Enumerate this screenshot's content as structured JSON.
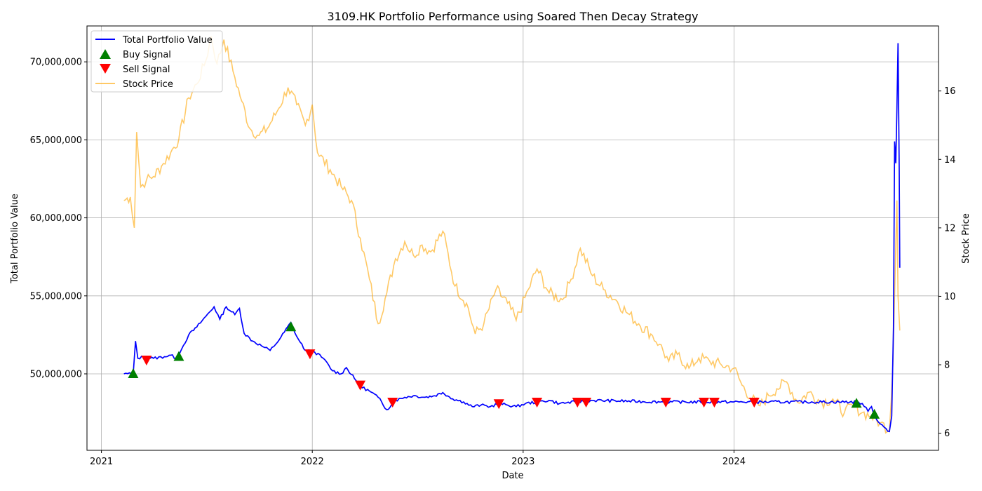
{
  "chart_data": {
    "type": "line",
    "title": "3109.HK Portfolio Performance using Soared Then Decay Strategy",
    "xlabel": "Date",
    "ylabel": "Total Portfolio Value",
    "y2label": "Stock Price",
    "x_ticks": [
      "2021",
      "2022",
      "2023",
      "2024"
    ],
    "xlim": [
      "2020-12-07",
      "2024-12-20"
    ],
    "ylim": [
      45100000,
      72300000
    ],
    "y_ticks": [
      50000000,
      55000000,
      60000000,
      65000000,
      70000000
    ],
    "y_tick_labels": [
      "50,000,000",
      "55,000,000",
      "60,000,000",
      "65,000,000",
      "70,000,000"
    ],
    "y2lim": [
      5.5,
      17.9
    ],
    "y2_ticks": [
      6,
      8,
      10,
      12,
      14,
      16
    ],
    "y2_tick_labels": [
      "6",
      "8",
      "10",
      "12",
      "14",
      "16"
    ],
    "grid": true,
    "legend_position": "top-left",
    "series": [
      {
        "name": "Total Portfolio Value",
        "axis": "left",
        "color": "#0000ff",
        "points": [
          [
            "2021-02-09",
            50000000
          ],
          [
            "2021-02-25",
            50000000
          ],
          [
            "2021-03-01",
            52100000
          ],
          [
            "2021-03-05",
            51000000
          ],
          [
            "2021-03-15",
            51100000
          ],
          [
            "2021-04-01",
            51000000
          ],
          [
            "2021-04-20",
            51100000
          ],
          [
            "2021-05-01",
            51200000
          ],
          [
            "2021-05-10",
            51000000
          ],
          [
            "2021-05-20",
            51600000
          ],
          [
            "2021-06-01",
            52500000
          ],
          [
            "2021-06-15",
            53000000
          ],
          [
            "2021-07-01",
            53700000
          ],
          [
            "2021-07-15",
            54300000
          ],
          [
            "2021-07-25",
            53500000
          ],
          [
            "2021-08-05",
            54300000
          ],
          [
            "2021-08-20",
            53800000
          ],
          [
            "2021-08-28",
            54200000
          ],
          [
            "2021-09-05",
            52600000
          ],
          [
            "2021-09-20",
            52100000
          ],
          [
            "2021-10-05",
            51800000
          ],
          [
            "2021-10-20",
            51500000
          ],
          [
            "2021-11-05",
            52200000
          ],
          [
            "2021-11-25",
            53300000
          ],
          [
            "2021-12-05",
            52400000
          ],
          [
            "2021-12-20",
            51500000
          ],
          [
            "2022-01-05",
            51400000
          ],
          [
            "2022-01-20",
            51000000
          ],
          [
            "2022-02-05",
            50200000
          ],
          [
            "2022-02-20",
            50000000
          ],
          [
            "2022-03-01",
            50400000
          ],
          [
            "2022-03-15",
            49700000
          ],
          [
            "2022-03-25",
            49200000
          ],
          [
            "2022-04-10",
            48900000
          ],
          [
            "2022-04-25",
            48500000
          ],
          [
            "2022-05-10",
            47700000
          ],
          [
            "2022-05-25",
            48300000
          ],
          [
            "2022-06-10",
            48500000
          ],
          [
            "2022-06-25",
            48600000
          ],
          [
            "2022-07-15",
            48500000
          ],
          [
            "2022-08-01",
            48600000
          ],
          [
            "2022-08-15",
            48800000
          ],
          [
            "2022-09-01",
            48400000
          ],
          [
            "2022-09-20",
            48200000
          ],
          [
            "2022-10-05",
            47900000
          ],
          [
            "2022-10-20",
            48000000
          ],
          [
            "2022-11-05",
            47900000
          ],
          [
            "2022-11-20",
            48100000
          ],
          [
            "2022-12-05",
            48000000
          ],
          [
            "2022-12-20",
            47900000
          ],
          [
            "2023-01-05",
            48100000
          ],
          [
            "2023-01-25",
            48200000
          ],
          [
            "2023-02-15",
            48300000
          ],
          [
            "2023-03-05",
            48100000
          ],
          [
            "2023-04-01",
            48200000
          ],
          [
            "2023-05-01",
            48300000
          ],
          [
            "2023-09-01",
            48200000
          ],
          [
            "2024-01-01",
            48200000
          ],
          [
            "2024-07-31",
            48200000
          ],
          [
            "2024-08-10",
            48100000
          ],
          [
            "2024-08-20",
            47600000
          ],
          [
            "2024-08-26",
            47900000
          ],
          [
            "2024-09-01",
            47300000
          ],
          [
            "2024-09-10",
            46800000
          ],
          [
            "2024-09-20",
            46500000
          ],
          [
            "2024-09-26",
            46300000
          ],
          [
            "2024-09-30",
            47300000
          ],
          [
            "2024-10-03",
            53000000
          ],
          [
            "2024-10-05",
            64900000
          ],
          [
            "2024-10-07",
            63500000
          ],
          [
            "2024-10-09",
            67000000
          ],
          [
            "2024-10-11",
            71200000
          ],
          [
            "2024-10-13",
            63000000
          ],
          [
            "2024-10-14",
            56800000
          ]
        ]
      },
      {
        "name": "Stock Price",
        "axis": "right",
        "color": "#ffa500",
        "points": [
          [
            "2021-02-09",
            12.8
          ],
          [
            "2021-02-20",
            12.9
          ],
          [
            "2021-02-27",
            12.0
          ],
          [
            "2021-03-03",
            14.8
          ],
          [
            "2021-03-10",
            13.2
          ],
          [
            "2021-03-20",
            13.4
          ],
          [
            "2021-04-01",
            13.5
          ],
          [
            "2021-04-15",
            13.8
          ],
          [
            "2021-05-01",
            14.2
          ],
          [
            "2021-05-15",
            14.6
          ],
          [
            "2021-06-01",
            15.8
          ],
          [
            "2021-06-15",
            16.2
          ],
          [
            "2021-07-01",
            16.9
          ],
          [
            "2021-07-10",
            17.6
          ],
          [
            "2021-07-20",
            16.8
          ],
          [
            "2021-08-01",
            17.5
          ],
          [
            "2021-08-20",
            16.4
          ],
          [
            "2021-09-01",
            15.7
          ],
          [
            "2021-09-15",
            14.9
          ],
          [
            "2021-10-01",
            14.7
          ],
          [
            "2021-10-15",
            14.9
          ],
          [
            "2021-11-01",
            15.4
          ],
          [
            "2021-11-20",
            16.1
          ],
          [
            "2021-12-05",
            15.6
          ],
          [
            "2021-12-20",
            15.0
          ],
          [
            "2022-01-01",
            15.6
          ],
          [
            "2022-01-10",
            14.2
          ],
          [
            "2022-02-01",
            13.7
          ],
          [
            "2022-02-20",
            13.2
          ],
          [
            "2022-03-10",
            12.8
          ],
          [
            "2022-03-25",
            11.7
          ],
          [
            "2022-04-10",
            10.5
          ],
          [
            "2022-04-25",
            9.2
          ],
          [
            "2022-05-10",
            10.1
          ],
          [
            "2022-05-25",
            11.1
          ],
          [
            "2022-06-10",
            11.6
          ],
          [
            "2022-06-25",
            11.2
          ],
          [
            "2022-07-10",
            11.5
          ],
          [
            "2022-07-25",
            11.3
          ],
          [
            "2022-08-15",
            11.9
          ],
          [
            "2022-09-05",
            10.3
          ],
          [
            "2022-09-25",
            9.8
          ],
          [
            "2022-10-10",
            8.9
          ],
          [
            "2022-10-25",
            9.2
          ],
          [
            "2022-11-15",
            10.2
          ],
          [
            "2022-12-05",
            9.8
          ],
          [
            "2022-12-20",
            9.3
          ],
          [
            "2023-01-10",
            10.2
          ],
          [
            "2023-01-25",
            10.8
          ],
          [
            "2023-02-15",
            10.1
          ],
          [
            "2023-03-10",
            9.9
          ],
          [
            "2023-03-25",
            10.5
          ],
          [
            "2023-04-10",
            11.4
          ],
          [
            "2023-05-01",
            10.6
          ],
          [
            "2023-05-20",
            10.2
          ],
          [
            "2023-06-10",
            9.9
          ],
          [
            "2023-07-01",
            9.5
          ],
          [
            "2023-07-20",
            9.2
          ],
          [
            "2023-08-10",
            8.9
          ],
          [
            "2023-08-25",
            8.6
          ],
          [
            "2023-09-10",
            8.1
          ],
          [
            "2023-09-25",
            8.3
          ],
          [
            "2023-10-15",
            7.9
          ],
          [
            "2023-11-01",
            8.2
          ],
          [
            "2023-11-20",
            8.1
          ],
          [
            "2023-12-10",
            8.0
          ],
          [
            "2024-01-01",
            7.9
          ],
          [
            "2024-01-15",
            7.4
          ],
          [
            "2024-02-01",
            7.0
          ],
          [
            "2024-02-15",
            6.8
          ],
          [
            "2024-03-01",
            7.1
          ],
          [
            "2024-03-15",
            7.3
          ],
          [
            "2024-04-01",
            7.5
          ],
          [
            "2024-04-20",
            6.9
          ],
          [
            "2024-05-10",
            7.2
          ],
          [
            "2024-06-01",
            6.9
          ],
          [
            "2024-06-20",
            7.0
          ],
          [
            "2024-07-10",
            6.6
          ],
          [
            "2024-07-25",
            6.8
          ],
          [
            "2024-08-10",
            6.6
          ],
          [
            "2024-08-25",
            6.5
          ],
          [
            "2024-09-10",
            6.3
          ],
          [
            "2024-09-26",
            6.1
          ],
          [
            "2024-10-02",
            8.0
          ],
          [
            "2024-10-07",
            11.5
          ],
          [
            "2024-10-09",
            12.8
          ],
          [
            "2024-10-11",
            10.0
          ],
          [
            "2024-10-14",
            9.0
          ]
        ]
      }
    ],
    "markers": [
      {
        "name": "Buy Signal",
        "color": "#008000",
        "shape": "triangle-up",
        "points": [
          [
            "2021-02-25",
            50000000
          ],
          [
            "2021-05-15",
            51100000
          ],
          [
            "2021-11-25",
            53000000
          ],
          [
            "2024-07-31",
            48100000
          ],
          [
            "2024-08-31",
            47400000
          ]
        ]
      },
      {
        "name": "Sell Signal",
        "color": "#ff0000",
        "shape": "triangle-down",
        "points": [
          [
            "2021-03-20",
            50900000
          ],
          [
            "2021-12-28",
            51300000
          ],
          [
            "2022-03-25",
            49300000
          ],
          [
            "2022-05-20",
            48200000
          ],
          [
            "2022-11-20",
            48100000
          ],
          [
            "2023-01-25",
            48200000
          ],
          [
            "2023-04-05",
            48200000
          ],
          [
            "2023-04-20",
            48200000
          ],
          [
            "2023-09-05",
            48200000
          ],
          [
            "2023-11-10",
            48200000
          ],
          [
            "2023-11-28",
            48200000
          ],
          [
            "2024-02-05",
            48200000
          ]
        ]
      }
    ]
  }
}
